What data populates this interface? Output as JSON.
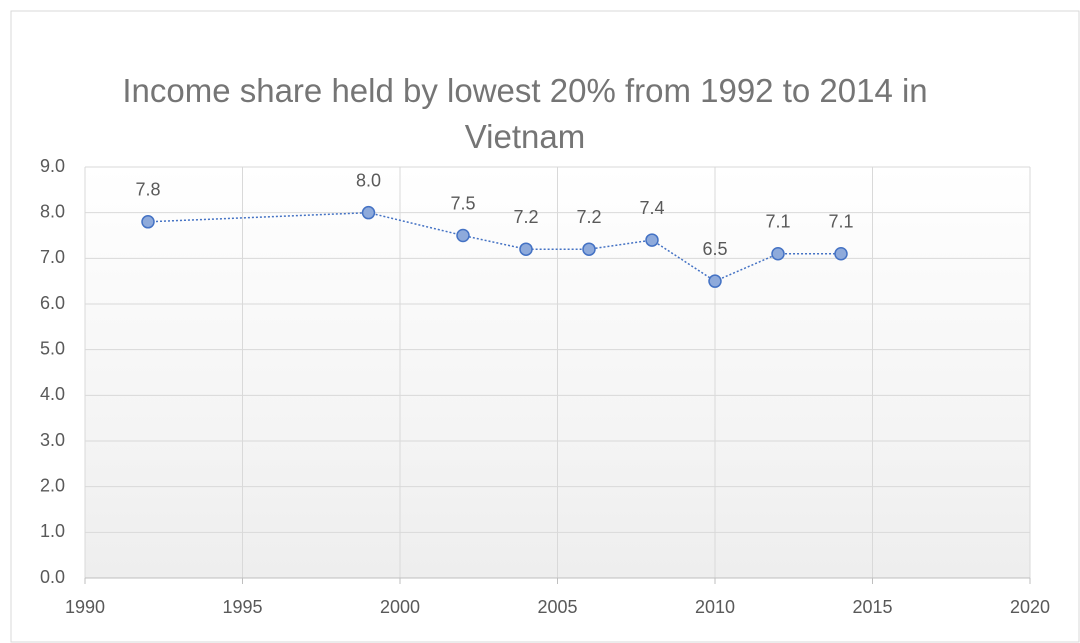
{
  "chart_data": {
    "type": "line",
    "title": "Income share held by lowest 20% from 1992 to 2014 in Vietnam",
    "x": [
      1992,
      1999,
      2002,
      2004,
      2006,
      2008,
      2010,
      2012,
      2014
    ],
    "series": [
      {
        "name": "Income share held by lowest 20%",
        "color": "#4472c4",
        "values": [
          7.8,
          8.0,
          7.5,
          7.2,
          7.2,
          7.4,
          6.5,
          7.1,
          7.1
        ],
        "value_labels": [
          "7.8",
          "8.0",
          "7.5",
          "7.2",
          "7.2",
          "7.4",
          "6.5",
          "7.1",
          "7.1"
        ]
      }
    ],
    "xlim": [
      1990,
      2020
    ],
    "xticks": [
      1990,
      1995,
      2000,
      2005,
      2010,
      2015,
      2020
    ],
    "ylim": [
      0,
      9
    ],
    "yticks": [
      {
        "value": 0,
        "label": "0.0"
      },
      {
        "value": 1,
        "label": "1.0"
      },
      {
        "value": 2,
        "label": "2.0"
      },
      {
        "value": 3,
        "label": "3.0"
      },
      {
        "value": 4,
        "label": "4.0"
      },
      {
        "value": 5,
        "label": "5.0"
      },
      {
        "value": 6,
        "label": "6.0"
      },
      {
        "value": 7,
        "label": "7.0"
      },
      {
        "value": 8,
        "label": "8.0"
      },
      {
        "value": 9,
        "label": "9.0"
      }
    ],
    "grid": true
  }
}
